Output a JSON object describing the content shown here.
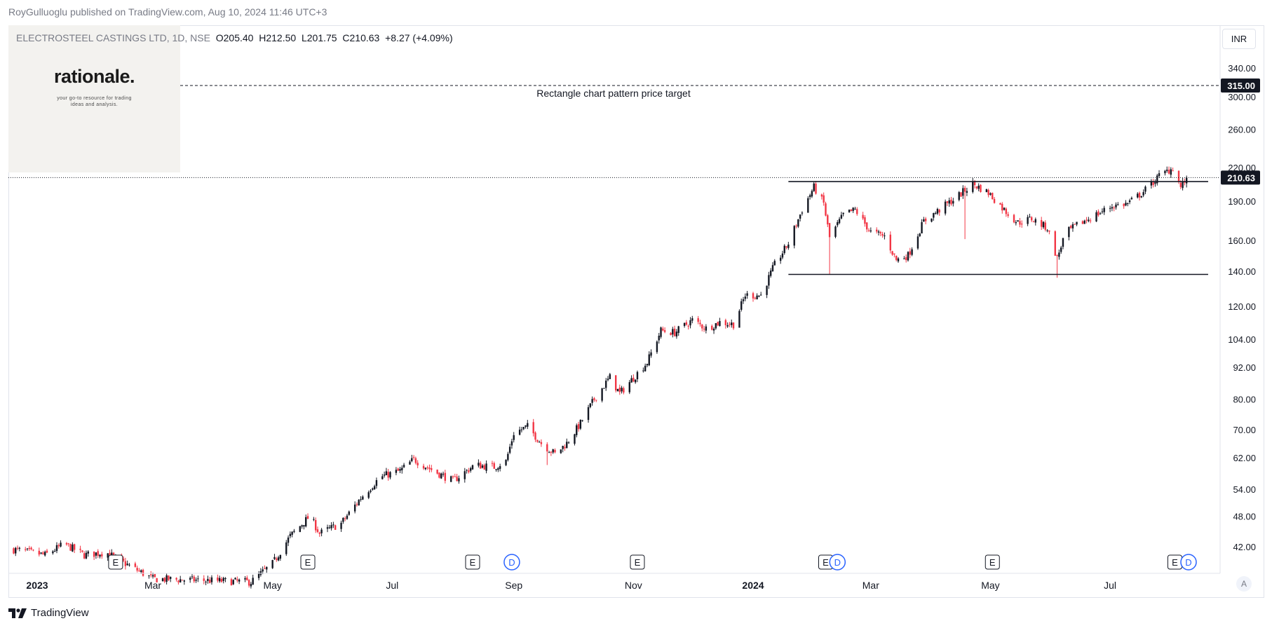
{
  "header": {
    "published": "RoyGulluoglu published on TradingView.com, Aug 10, 2024 11:46 UTC+3"
  },
  "logo": {
    "word": "rationale.",
    "tagline1": "your go-to resource for trading",
    "tagline2": "ideas and analysis."
  },
  "legend": {
    "symbol": "ELECTROSTEEL CASTINGS LTD, 1D, NSE",
    "open_label": "O",
    "open": "205.40",
    "high_label": "H",
    "high": "212.50",
    "low_label": "L",
    "low": "201.75",
    "close_label": "C",
    "close": "210.63",
    "change": "+8.27 (+4.09%)"
  },
  "currency": "INR",
  "auto_label": "A",
  "brand": "TradingView",
  "colors": {
    "up": "#131722",
    "down": "#f23645",
    "price_tag": "#131722",
    "event_d": "#2962ff",
    "event_e": "#131722"
  },
  "chart_data": {
    "type": "candlestick",
    "scale": "log",
    "currency": "INR",
    "grid": false,
    "y_ticks": [
      340,
      300,
      260,
      220,
      190,
      160,
      140,
      120,
      104,
      92,
      80,
      70,
      62,
      54,
      48,
      42
    ],
    "y_tick_labels": [
      "340.00",
      "300.00",
      "260.00",
      "220.00",
      "190.00",
      "160.00",
      "140.00",
      "120.00",
      "104.00",
      "92.00",
      "80.00",
      "70.00",
      "62.00",
      "54.00",
      "48.00",
      "42.00"
    ],
    "x_ticks": [
      {
        "label": "2023",
        "bold": true,
        "date": "2023-01-01"
      },
      {
        "label": "Mar",
        "bold": false,
        "date": "2023-03-01"
      },
      {
        "label": "May",
        "bold": false,
        "date": "2023-05-01"
      },
      {
        "label": "Jul",
        "bold": false,
        "date": "2023-07-01"
      },
      {
        "label": "Sep",
        "bold": false,
        "date": "2023-09-01"
      },
      {
        "label": "Nov",
        "bold": false,
        "date": "2023-11-01"
      },
      {
        "label": "2024",
        "bold": true,
        "date": "2024-01-01"
      },
      {
        "label": "Mar",
        "bold": false,
        "date": "2024-03-01"
      },
      {
        "label": "May",
        "bold": false,
        "date": "2024-05-01"
      },
      {
        "label": "Jul",
        "bold": false,
        "date": "2024-07-01"
      }
    ],
    "x_range": [
      "2022-12-20",
      "2024-08-22"
    ],
    "y_range": [
      37,
      375
    ],
    "last_price": 210.63,
    "last_price_label": "210.63",
    "target_price": 315.0,
    "target_price_label": "315.00",
    "target_label": "Rectangle chart pattern price target",
    "rectangle": {
      "resistance": 207,
      "support": 138,
      "start": "2024-01-19",
      "end": "2024-08-20"
    },
    "events": [
      {
        "type": "E",
        "date": "2023-02-10"
      },
      {
        "type": "E",
        "date": "2023-05-19"
      },
      {
        "type": "E",
        "date": "2023-08-11"
      },
      {
        "type": "D",
        "date": "2023-08-31"
      },
      {
        "type": "E",
        "date": "2023-11-03"
      },
      {
        "type": "E",
        "date": "2024-02-07"
      },
      {
        "type": "D",
        "date": "2024-02-13"
      },
      {
        "type": "E",
        "date": "2024-05-02"
      },
      {
        "type": "E",
        "date": "2024-08-03"
      },
      {
        "type": "D",
        "date": "2024-08-10"
      }
    ],
    "price_path": [
      [
        "2022-12-20",
        41.5
      ],
      [
        "2023-01-05",
        40.5
      ],
      [
        "2023-01-15",
        42.5
      ],
      [
        "2023-01-25",
        40.5
      ],
      [
        "2023-02-05",
        41
      ],
      [
        "2023-02-15",
        39
      ],
      [
        "2023-03-01",
        36.5
      ],
      [
        "2023-04-20",
        36
      ],
      [
        "2023-05-01",
        39
      ],
      [
        "2023-05-10",
        44
      ],
      [
        "2023-05-20",
        48
      ],
      [
        "2023-05-25",
        44.5
      ],
      [
        "2023-06-05",
        46.5
      ],
      [
        "2023-06-15",
        52
      ],
      [
        "2023-06-25",
        57
      ],
      [
        "2023-07-05",
        58.5
      ],
      [
        "2023-07-12",
        61.5
      ],
      [
        "2023-07-22",
        58.5
      ],
      [
        "2023-08-01",
        56
      ],
      [
        "2023-08-12",
        60
      ],
      [
        "2023-08-22",
        59.5
      ],
      [
        "2023-08-28",
        61
      ],
      [
        "2023-09-01",
        69
      ],
      [
        "2023-09-08",
        71
      ],
      [
        "2023-09-15",
        66
      ],
      [
        "2023-09-22",
        63
      ],
      [
        "2023-09-28",
        66
      ],
      [
        "2023-10-05",
        72
      ],
      [
        "2023-10-12",
        80
      ],
      [
        "2023-10-20",
        88
      ],
      [
        "2023-10-25",
        82
      ],
      [
        "2023-10-31",
        87
      ],
      [
        "2023-11-08",
        94
      ],
      [
        "2023-11-15",
        108
      ],
      [
        "2023-11-22",
        107
      ],
      [
        "2023-12-01",
        113
      ],
      [
        "2023-12-08",
        109
      ],
      [
        "2023-12-15",
        112
      ],
      [
        "2023-12-22",
        111
      ],
      [
        "2023-12-28",
        126
      ],
      [
        "2024-01-05",
        126
      ],
      [
        "2024-01-12",
        144
      ],
      [
        "2024-01-19",
        158
      ],
      [
        "2024-01-26",
        183
      ],
      [
        "2024-02-01",
        202
      ],
      [
        "2024-02-06",
        188
      ],
      [
        "2024-02-09",
        162
      ],
      [
        "2024-02-16",
        179
      ],
      [
        "2024-02-22",
        183
      ],
      [
        "2024-03-01",
        166
      ],
      [
        "2024-03-08",
        163
      ],
      [
        "2024-03-14",
        147
      ],
      [
        "2024-03-20",
        150
      ],
      [
        "2024-03-28",
        174
      ],
      [
        "2024-04-05",
        183
      ],
      [
        "2024-04-15",
        195
      ],
      [
        "2024-04-22",
        205
      ],
      [
        "2024-04-30",
        197
      ],
      [
        "2024-05-08",
        183
      ],
      [
        "2024-05-15",
        173
      ],
      [
        "2024-05-22",
        176
      ],
      [
        "2024-05-30",
        169
      ],
      [
        "2024-06-04",
        148
      ],
      [
        "2024-06-08",
        165
      ],
      [
        "2024-06-15",
        172
      ],
      [
        "2024-06-25",
        180
      ],
      [
        "2024-07-02",
        186
      ],
      [
        "2024-07-10",
        188
      ],
      [
        "2024-07-18",
        198
      ],
      [
        "2024-07-26",
        212
      ],
      [
        "2024-08-02",
        220
      ],
      [
        "2024-08-06",
        202
      ],
      [
        "2024-08-09",
        210.63
      ]
    ]
  }
}
